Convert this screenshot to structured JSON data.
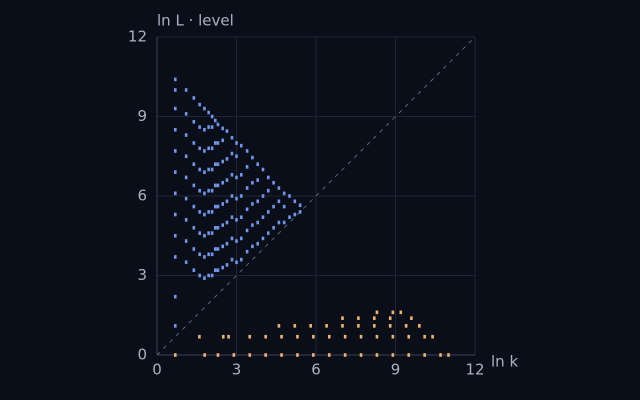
{
  "chart_data": {
    "type": "scatter",
    "x_label": "ln k",
    "y_label": "ln L · level",
    "xlim": [
      0,
      12
    ],
    "ylim": [
      0,
      12
    ],
    "xticks": [
      0,
      3,
      6,
      9,
      12
    ],
    "yticks": [
      0,
      3,
      6,
      9,
      12
    ],
    "grid": true,
    "diagonal": true,
    "series": [
      {
        "color": "#6f96ea",
        "points": [
          [
            0.69,
            1.1
          ],
          [
            0.69,
            2.2
          ],
          [
            0.69,
            3.7
          ],
          [
            0.69,
            4.5
          ],
          [
            0.69,
            5.3
          ],
          [
            0.69,
            6.1
          ],
          [
            0.69,
            6.9
          ],
          [
            0.69,
            7.7
          ],
          [
            0.69,
            8.5
          ],
          [
            0.69,
            9.3
          ],
          [
            0.69,
            10.0
          ],
          [
            0.69,
            10.4
          ],
          [
            1.1,
            3.5
          ],
          [
            1.1,
            4.3
          ],
          [
            1.1,
            5.1
          ],
          [
            1.1,
            5.9
          ],
          [
            1.1,
            6.7
          ],
          [
            1.1,
            7.5
          ],
          [
            1.1,
            8.3
          ],
          [
            1.1,
            9.1
          ],
          [
            1.1,
            10.0
          ],
          [
            1.39,
            3.2
          ],
          [
            1.39,
            4.0
          ],
          [
            1.39,
            4.8
          ],
          [
            1.39,
            5.6
          ],
          [
            1.39,
            6.4
          ],
          [
            1.39,
            7.2
          ],
          [
            1.39,
            8.0
          ],
          [
            1.39,
            8.8
          ],
          [
            1.39,
            9.7
          ],
          [
            1.61,
            3.0
          ],
          [
            1.61,
            3.8
          ],
          [
            1.61,
            4.6
          ],
          [
            1.61,
            5.4
          ],
          [
            1.61,
            6.2
          ],
          [
            1.61,
            7.0
          ],
          [
            1.61,
            7.8
          ],
          [
            1.61,
            8.6
          ],
          [
            1.61,
            9.45
          ],
          [
            1.79,
            2.9
          ],
          [
            1.79,
            3.7
          ],
          [
            1.79,
            4.5
          ],
          [
            1.79,
            5.3
          ],
          [
            1.79,
            6.1
          ],
          [
            1.79,
            6.9
          ],
          [
            1.79,
            7.7
          ],
          [
            1.79,
            8.5
          ],
          [
            1.79,
            9.3
          ],
          [
            1.95,
            3.0
          ],
          [
            1.95,
            3.8
          ],
          [
            1.95,
            4.6
          ],
          [
            1.95,
            5.4
          ],
          [
            1.95,
            6.2
          ],
          [
            1.95,
            7.0
          ],
          [
            1.95,
            7.8
          ],
          [
            1.95,
            8.6
          ],
          [
            1.95,
            9.15
          ],
          [
            2.08,
            3.0
          ],
          [
            2.08,
            3.8
          ],
          [
            2.08,
            4.6
          ],
          [
            2.08,
            5.4
          ],
          [
            2.08,
            6.2
          ],
          [
            2.08,
            7.0
          ],
          [
            2.08,
            7.8
          ],
          [
            2.08,
            8.6
          ],
          [
            2.08,
            9.0
          ],
          [
            2.2,
            3.2
          ],
          [
            2.2,
            4.0
          ],
          [
            2.2,
            4.8
          ],
          [
            2.2,
            5.6
          ],
          [
            2.2,
            6.4
          ],
          [
            2.2,
            7.2
          ],
          [
            2.2,
            8.0
          ],
          [
            2.2,
            8.85
          ],
          [
            2.3,
            3.2
          ],
          [
            2.3,
            4.0
          ],
          [
            2.3,
            4.8
          ],
          [
            2.3,
            5.6
          ],
          [
            2.3,
            6.4
          ],
          [
            2.3,
            7.2
          ],
          [
            2.3,
            8.0
          ],
          [
            2.3,
            8.7
          ],
          [
            2.48,
            3.3
          ],
          [
            2.48,
            4.1
          ],
          [
            2.48,
            4.9
          ],
          [
            2.48,
            5.7
          ],
          [
            2.48,
            6.5
          ],
          [
            2.48,
            7.3
          ],
          [
            2.48,
            8.1
          ],
          [
            2.48,
            8.55
          ],
          [
            2.64,
            3.4
          ],
          [
            2.64,
            4.2
          ],
          [
            2.64,
            5.0
          ],
          [
            2.64,
            5.8
          ],
          [
            2.64,
            6.6
          ],
          [
            2.64,
            7.4
          ],
          [
            2.64,
            8.45
          ],
          [
            2.83,
            3.6
          ],
          [
            2.83,
            4.4
          ],
          [
            2.83,
            5.2
          ],
          [
            2.83,
            6.0
          ],
          [
            2.83,
            6.8
          ],
          [
            2.83,
            7.6
          ],
          [
            2.83,
            8.2
          ],
          [
            3.0,
            3.5
          ],
          [
            3.0,
            4.3
          ],
          [
            3.0,
            5.1
          ],
          [
            3.0,
            5.9
          ],
          [
            3.0,
            6.7
          ],
          [
            3.0,
            7.5
          ],
          [
            3.0,
            8.0
          ],
          [
            3.18,
            3.6
          ],
          [
            3.18,
            4.4
          ],
          [
            3.18,
            5.2
          ],
          [
            3.18,
            6.0
          ],
          [
            3.18,
            6.8
          ],
          [
            3.18,
            7.9
          ],
          [
            3.4,
            3.9
          ],
          [
            3.4,
            4.7
          ],
          [
            3.4,
            5.5
          ],
          [
            3.4,
            6.3
          ],
          [
            3.4,
            7.1
          ],
          [
            3.4,
            7.7
          ],
          [
            3.6,
            4.1
          ],
          [
            3.6,
            4.9
          ],
          [
            3.6,
            5.7
          ],
          [
            3.6,
            6.5
          ],
          [
            3.6,
            7.45
          ],
          [
            3.8,
            4.2
          ],
          [
            3.8,
            5.0
          ],
          [
            3.8,
            5.8
          ],
          [
            3.8,
            6.6
          ],
          [
            3.8,
            7.2
          ],
          [
            4.0,
            4.4
          ],
          [
            4.0,
            5.2
          ],
          [
            4.0,
            6.0
          ],
          [
            4.0,
            7.0
          ],
          [
            4.2,
            4.6
          ],
          [
            4.2,
            5.4
          ],
          [
            4.2,
            6.2
          ],
          [
            4.2,
            6.7
          ],
          [
            4.4,
            4.8
          ],
          [
            4.4,
            5.6
          ],
          [
            4.4,
            6.5
          ],
          [
            4.6,
            5.0
          ],
          [
            4.6,
            5.8
          ],
          [
            4.6,
            6.3
          ],
          [
            4.8,
            5.0
          ],
          [
            4.8,
            5.6
          ],
          [
            4.8,
            6.1
          ],
          [
            5.0,
            5.2
          ],
          [
            5.0,
            6.0
          ],
          [
            5.2,
            5.3
          ],
          [
            5.2,
            5.8
          ],
          [
            5.4,
            5.4
          ],
          [
            5.4,
            5.65
          ]
        ]
      },
      {
        "color": "#f2b26f",
        "points": [
          [
            0.69,
            0
          ],
          [
            1.8,
            0
          ],
          [
            2.3,
            0
          ],
          [
            2.9,
            0
          ],
          [
            3.5,
            0
          ],
          [
            4.1,
            0
          ],
          [
            4.7,
            0
          ],
          [
            5.3,
            0
          ],
          [
            5.9,
            0
          ],
          [
            6.5,
            0
          ],
          [
            7.1,
            0
          ],
          [
            7.7,
            0
          ],
          [
            8.3,
            0
          ],
          [
            8.9,
            0
          ],
          [
            9.5,
            0
          ],
          [
            10.1,
            0
          ],
          [
            10.7,
            0
          ],
          [
            11.0,
            0
          ],
          [
            1.6,
            0.69
          ],
          [
            2.5,
            0.69
          ],
          [
            2.7,
            0.69
          ],
          [
            3.5,
            0.69
          ],
          [
            4.1,
            0.69
          ],
          [
            4.7,
            0.69
          ],
          [
            5.3,
            0.69
          ],
          [
            5.9,
            0.69
          ],
          [
            6.5,
            0.69
          ],
          [
            7.1,
            0.69
          ],
          [
            7.7,
            0.69
          ],
          [
            8.3,
            0.69
          ],
          [
            8.9,
            0.69
          ],
          [
            9.5,
            0.69
          ],
          [
            10.1,
            0.69
          ],
          [
            10.4,
            0.69
          ],
          [
            4.6,
            1.1
          ],
          [
            5.2,
            1.1
          ],
          [
            5.8,
            1.1
          ],
          [
            6.4,
            1.1
          ],
          [
            7.0,
            1.1
          ],
          [
            7.6,
            1.1
          ],
          [
            8.2,
            1.1
          ],
          [
            8.8,
            1.1
          ],
          [
            9.4,
            1.1
          ],
          [
            9.9,
            1.1
          ],
          [
            7.0,
            1.39
          ],
          [
            7.6,
            1.39
          ],
          [
            8.2,
            1.39
          ],
          [
            8.8,
            1.39
          ],
          [
            9.6,
            1.39
          ],
          [
            8.3,
            1.61
          ],
          [
            8.9,
            1.61
          ],
          [
            9.2,
            1.61
          ]
        ]
      }
    ]
  }
}
